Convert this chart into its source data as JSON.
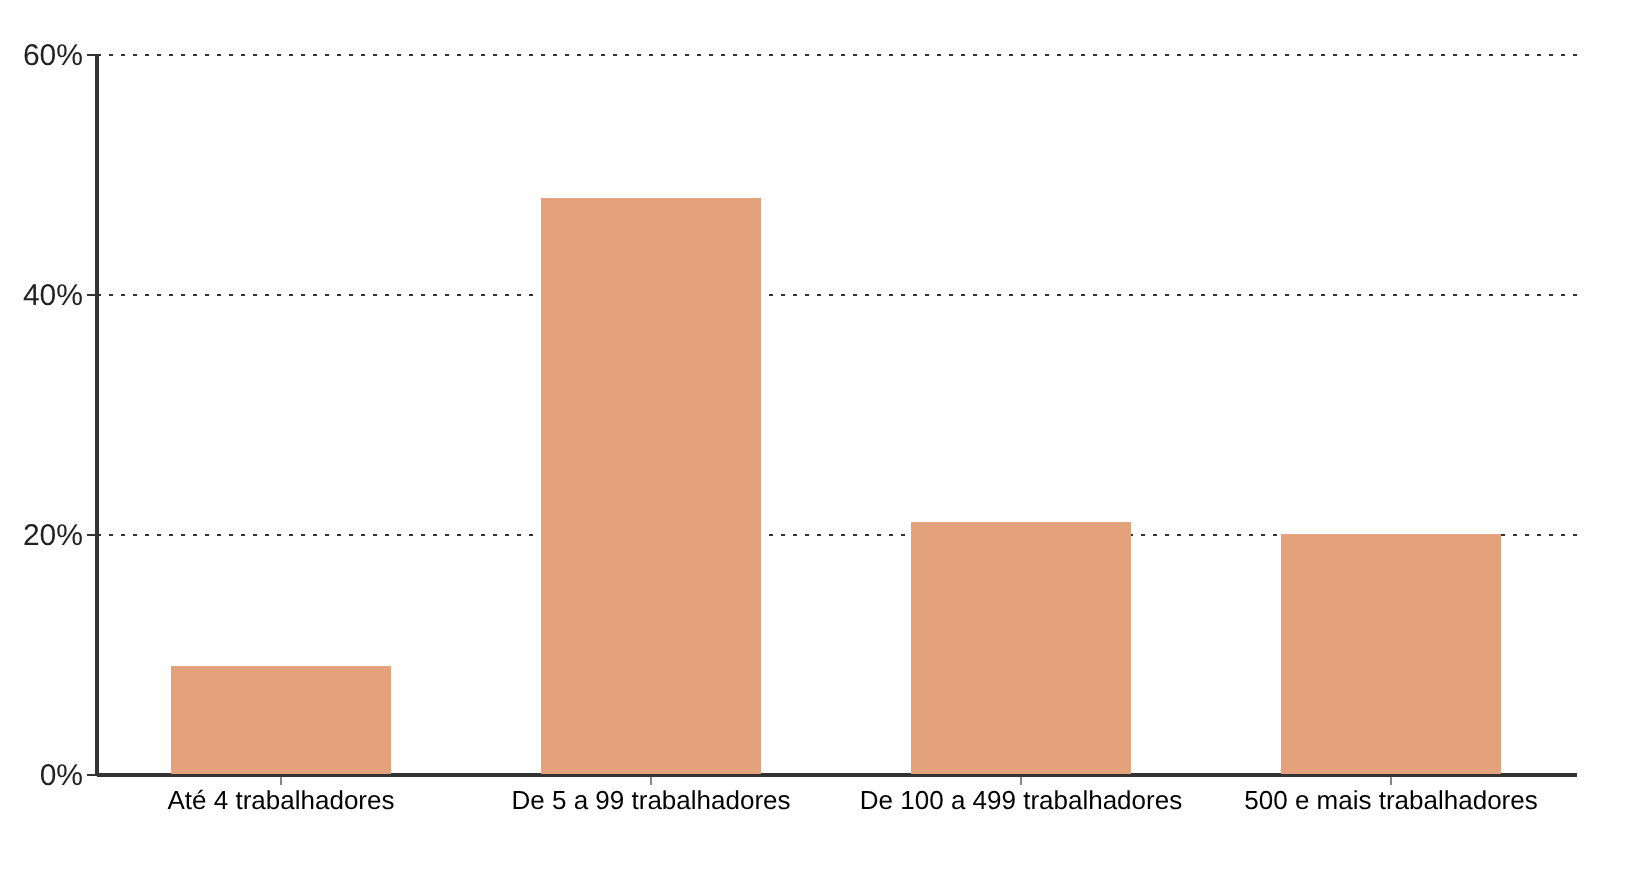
{
  "chart_data": {
    "type": "bar",
    "categories": [
      "Até 4 trabalhadores",
      "De 5 a 99\ntrabalhadores",
      "De 100 a 499\ntrabalhadores",
      "500 e mais\ntrabalhadores"
    ],
    "values": [
      9,
      48,
      21,
      20
    ],
    "color": "#e3a27c",
    "ylim": [
      0,
      60
    ],
    "yticks": [
      {
        "value": 0,
        "label": "0%"
      },
      {
        "value": 20,
        "label": "20%"
      },
      {
        "value": 40,
        "label": "40%"
      },
      {
        "value": 60,
        "label": "60%"
      }
    ],
    "grid": "y",
    "line_style": "dotted"
  }
}
